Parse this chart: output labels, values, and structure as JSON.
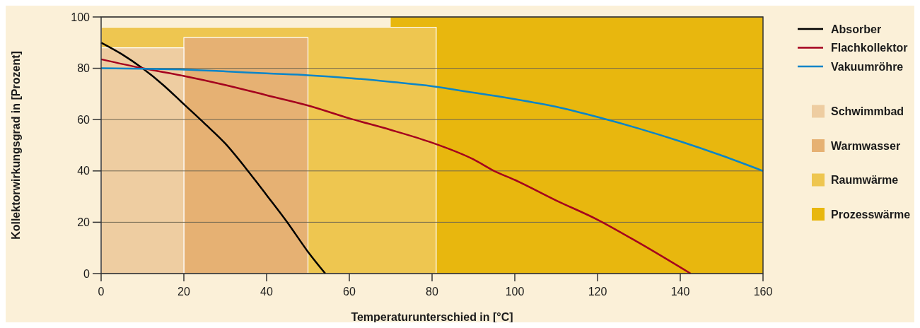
{
  "chart_data": {
    "type": "line",
    "xlabel": "Temperaturunterschied in [°C]",
    "ylabel": "Kollektorwirkungsgrad in [Prozent]",
    "xlim": [
      0,
      160
    ],
    "xticks": [
      0,
      20,
      40,
      60,
      80,
      100,
      120,
      140,
      160
    ],
    "ylim": [
      0,
      100
    ],
    "yticks": [
      0,
      20,
      40,
      60,
      80,
      100
    ],
    "grid": "y",
    "legend": "right",
    "series": [
      {
        "name": "Absorber",
        "color": "#000000",
        "x": [
          0,
          5,
          10,
          15,
          20,
          25,
          30,
          35,
          40,
          45,
          50,
          54.2
        ],
        "values": [
          90,
          85.5,
          80,
          73.5,
          66,
          58.5,
          50.7,
          41,
          30.6,
          20,
          8.5,
          0
        ]
      },
      {
        "name": "Flachkollektor",
        "color": "#a4001e",
        "x": [
          0,
          10,
          20,
          30,
          40,
          50,
          60,
          70,
          80,
          90,
          95,
          100,
          110,
          120,
          130,
          142.5
        ],
        "values": [
          83.5,
          80,
          77,
          73.5,
          69.5,
          65.5,
          60.5,
          56,
          51,
          44.5,
          40,
          36.5,
          28.5,
          21,
          12,
          0
        ]
      },
      {
        "name": "Vakuumröhre",
        "color": "#0a85c8",
        "x": [
          0,
          10,
          20,
          30,
          40,
          50,
          60,
          70,
          80,
          90,
          100,
          110,
          120,
          130,
          140,
          150,
          160
        ],
        "values": [
          80,
          79.8,
          79.5,
          78.8,
          78,
          77.3,
          76.2,
          74.7,
          73,
          70.5,
          68,
          65,
          61,
          56.5,
          51.5,
          46,
          40
        ]
      },
      {
        "name": "Schwimmbad",
        "type": "area",
        "color": "#eecda1",
        "x": [
          0,
          20
        ],
        "values": [
          88,
          88
        ]
      },
      {
        "name": "Warmwasser",
        "type": "area",
        "color": "#e6b173",
        "x": [
          20,
          50
        ],
        "values": [
          92,
          92
        ]
      },
      {
        "name": "Raumwärme",
        "type": "area",
        "color": "#eec650",
        "x": [
          0,
          81
        ],
        "values": [
          96,
          96
        ]
      },
      {
        "name": "Prozesswärme",
        "type": "area",
        "color": "#e8b70e",
        "x": [
          70,
          160
        ],
        "values": [
          100,
          100
        ]
      }
    ]
  }
}
